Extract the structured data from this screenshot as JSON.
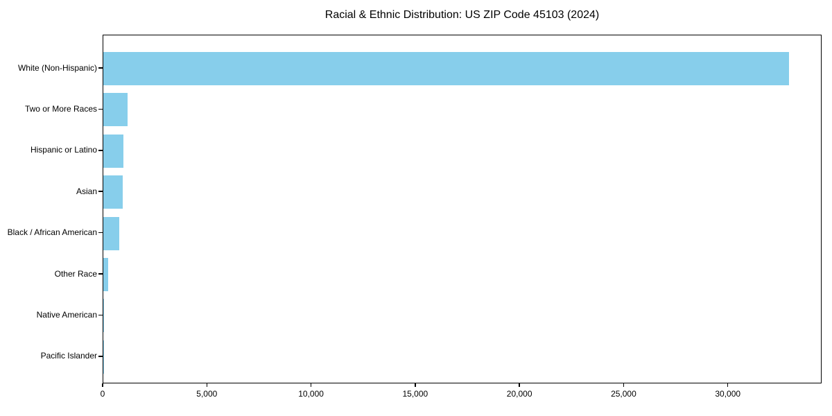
{
  "chart_data": {
    "type": "bar",
    "orientation": "horizontal",
    "title": "Racial & Ethnic Distribution: US ZIP Code 45103 (2024)",
    "categories": [
      "White (Non-Hispanic)",
      "Two or More Races",
      "Hispanic or Latino",
      "Asian",
      "Black / African American",
      "Other Race",
      "Native American",
      "Pacific Islander"
    ],
    "values": [
      32900,
      1170,
      950,
      915,
      770,
      230,
      30,
      10
    ],
    "xlabel": "",
    "ylabel": "",
    "xlim": [
      0,
      34500
    ],
    "xticks": [
      0,
      5000,
      10000,
      15000,
      20000,
      25000,
      30000
    ],
    "xtick_labels": [
      "0",
      "5,000",
      "10,000",
      "15,000",
      "20,000",
      "25,000",
      "30,000"
    ],
    "grid": false,
    "legend": null,
    "bar_color": "#87CEEB",
    "spine_color": "#000000",
    "text_color": "#000000",
    "background_color": "#ffffff"
  }
}
